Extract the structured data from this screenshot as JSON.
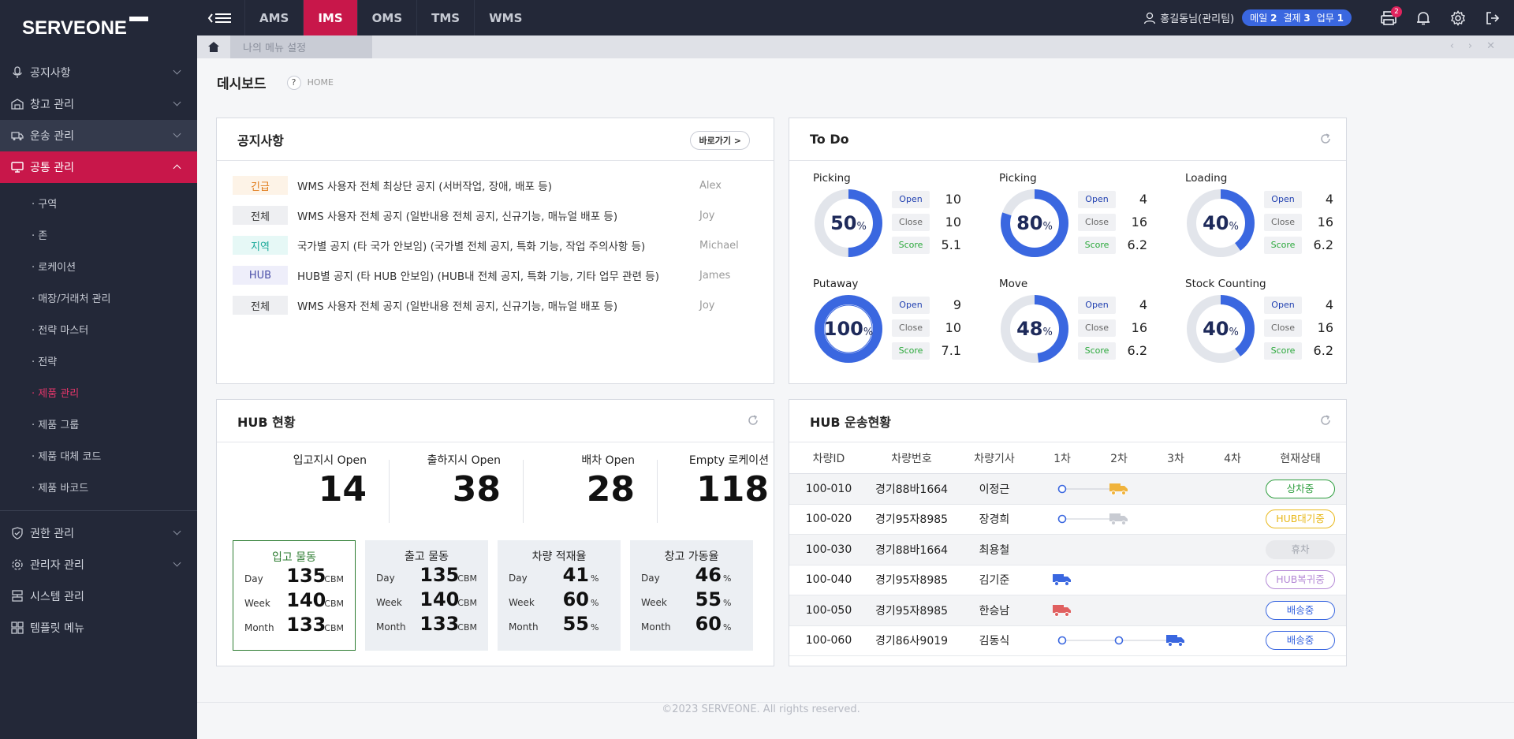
{
  "app": {
    "logo": "SERVEONE"
  },
  "sidebar": {
    "groups": [
      {
        "label": "공지사항",
        "icon": "microphone-icon"
      },
      {
        "label": "창고 관리",
        "icon": "warehouse-icon"
      },
      {
        "label": "운송 관리",
        "icon": "truck-icon"
      },
      {
        "label": "공통 관리",
        "icon": "monitor-icon"
      },
      {
        "label": "권한 관리",
        "icon": "shield-icon"
      },
      {
        "label": "관리자 관리",
        "icon": "gear-icon"
      },
      {
        "label": "시스템 관리",
        "icon": "server-icon"
      },
      {
        "label": "템플릿 메뉴",
        "icon": "grid-icon"
      }
    ],
    "sub_items": [
      "구역",
      "존",
      "로케이션",
      "매장/거래처 관리",
      "전략 마스터",
      "전략",
      "제품 관리",
      "제품 그룹",
      "제품 대체 코드",
      "제품 바코드"
    ]
  },
  "topbar": {
    "tabs": [
      "AMS",
      "IMS",
      "OMS",
      "TMS",
      "WMS"
    ],
    "active_tab": "IMS",
    "user": "홍길동님(관리팀)",
    "counts": {
      "mail_label": "메일",
      "mail": "2",
      "approval_label": "결제",
      "approval": "3",
      "task_label": "업무",
      "task": "1"
    },
    "cart_badge": "2"
  },
  "subbar": {
    "my_menu": "나의 메뉴 설정"
  },
  "page": {
    "title": "데시보드",
    "help": "?",
    "breadcrumb": "HOME"
  },
  "notice": {
    "title": "공지사항",
    "go_label": "바로가기 >",
    "rows": [
      {
        "tag": "긴급",
        "text": "WMS 사용자 전체 최상단 공지 (서버작업, 장애, 배포 등)",
        "author": "Alex",
        "tag_bg": "#fdf3e7",
        "tag_color": "#e07b1a"
      },
      {
        "tag": "전체",
        "text": "WMS 사용자 전체 공지 (일반내용 전체 공지, 신규기능, 매뉴얼 배포 등)",
        "author": "Joy",
        "tag_bg": "#eeeff2",
        "tag_color": "#333333"
      },
      {
        "tag": "지역",
        "text": "국가별 공지 (타 국가 안보임) (국가별 전체 공지, 특화 기능, 작업 주의사항 등)",
        "author": "Michael",
        "tag_bg": "#e6f8f6",
        "tag_color": "#1aa99a"
      },
      {
        "tag": "HUB",
        "text": "HUB별 공지 (타 HUB 안보임) (HUB내 전체 공지, 특화 기능, 기타 업무 관련 등)",
        "author": "James",
        "tag_bg": "#eeeefa",
        "tag_color": "#4a4fa8"
      },
      {
        "tag": "전체",
        "text": "WMS 사용자 전체 공지 (일반내용 전체 공지, 신규기능, 매뉴얼 배포 등)",
        "author": "Joy",
        "tag_bg": "#eeeff2",
        "tag_color": "#333333"
      }
    ]
  },
  "todo": {
    "title": "To Do",
    "labels": {
      "open": "Open",
      "close": "Close",
      "score": "Score"
    },
    "items": [
      {
        "name": "Picking",
        "pct": 50,
        "open": "10",
        "close": "10",
        "score": "5.1"
      },
      {
        "name": "Picking",
        "pct": 80,
        "open": "4",
        "close": "16",
        "score": "6.2"
      },
      {
        "name": "Loading",
        "pct": 40,
        "open": "4",
        "close": "16",
        "score": "6.2"
      },
      {
        "name": "Putaway",
        "pct": 100,
        "open": "9",
        "close": "10",
        "score": "7.1"
      },
      {
        "name": "Move",
        "pct": 48,
        "open": "4",
        "close": "16",
        "score": "6.2"
      },
      {
        "name": "Stock Counting",
        "pct": 40,
        "open": "4",
        "close": "16",
        "score": "6.2"
      }
    ]
  },
  "hub": {
    "title": "HUB 현황",
    "stats": [
      {
        "label": "입고지시 Open",
        "value": "14"
      },
      {
        "label": "출하지시 Open",
        "value": "38"
      },
      {
        "label": "배차 Open",
        "value": "28"
      },
      {
        "label": "Empty 로케이션",
        "value": "118"
      }
    ],
    "row_labels": [
      "Day",
      "Week",
      "Month"
    ],
    "movements": [
      {
        "title": "입고 물동",
        "unit": "CBM",
        "values": [
          "135",
          "140",
          "133"
        ]
      },
      {
        "title": "출고 물동",
        "unit": "CBM",
        "values": [
          "135",
          "140",
          "133"
        ]
      },
      {
        "title": "차량 적재율",
        "unit": "%",
        "values": [
          "41",
          "60",
          "55"
        ]
      },
      {
        "title": "창고 가동율",
        "unit": "%",
        "values": [
          "46",
          "55",
          "60"
        ]
      }
    ]
  },
  "transport": {
    "title": "HUB 운송현황",
    "columns": [
      "차량ID",
      "차량번호",
      "차량기사",
      "1차",
      "2차",
      "3차",
      "4차",
      "현재상태"
    ],
    "rows": [
      {
        "id": "100-010",
        "plate": "경기88바1664",
        "driver": "이정근",
        "status": "상차중",
        "status_color": "#2e9e3e",
        "status_bg": "#ffffff",
        "progress": 2,
        "truck_color": "#f0b33c"
      },
      {
        "id": "100-020",
        "plate": "경기95자8985",
        "driver": "장경희",
        "status": "HUB대기중",
        "status_color": "#e8b81a",
        "status_bg": "#ffffff",
        "progress": 2,
        "truck_color": "#c8cbd2"
      },
      {
        "id": "100-030",
        "plate": "경기88바1664",
        "driver": "최용철",
        "status": "휴차",
        "status_color": "#a0a4ad",
        "status_bg": "#e8e9ec",
        "progress": 0,
        "truck_color": ""
      },
      {
        "id": "100-040",
        "plate": "경기95자8985",
        "driver": "김기준",
        "status": "HUB복귀중",
        "status_color": "#b58ad6",
        "status_bg": "#ffffff",
        "progress": 1,
        "truck_color": "#3a67e0"
      },
      {
        "id": "100-050",
        "plate": "경기95자8985",
        "driver": "한승남",
        "status": "배송중",
        "status_color": "#3a67e0",
        "status_bg": "#ffffff",
        "progress": 1,
        "truck_color": "#e06060"
      },
      {
        "id": "100-060",
        "plate": "경기86사9019",
        "driver": "김동식",
        "status": "배송중",
        "status_color": "#3a67e0",
        "status_bg": "#ffffff",
        "progress": 3,
        "truck_color": "#3a67e0"
      }
    ]
  },
  "footer": {
    "copyright": "©2023 SERVEONE. All rights reserved."
  }
}
